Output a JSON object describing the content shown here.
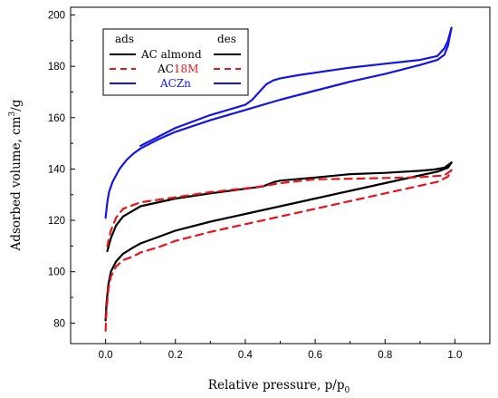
{
  "chart_data": {
    "type": "line",
    "xlabel": "Relative pressure, p/p",
    "xlabel_sub": "0",
    "ylabel": "Adsorbed volume, cm",
    "ylabel_sup": "3",
    "ylabel_tail": "/g",
    "xlim": [
      -0.1,
      1.1
    ],
    "ylim": [
      72,
      203
    ],
    "x_ticks": [
      0.0,
      0.2,
      0.4,
      0.6,
      0.8,
      1.0
    ],
    "x_tick_labels": [
      "0.0",
      "0.2",
      "0.4",
      "0.6",
      "0.8",
      "1.0"
    ],
    "y_ticks": [
      80,
      100,
      120,
      140,
      160,
      180,
      200
    ],
    "y_tick_labels": [
      "80",
      "100",
      "120",
      "140",
      "160",
      "180",
      "200"
    ],
    "grid": false,
    "legend": {
      "placement": "top-left",
      "header_left": "ads",
      "header_right": "des",
      "entries": [
        {
          "label_parts": [
            {
              "text": "AC almond",
              "color": "#000000"
            }
          ],
          "color": "#000000",
          "dashed": false
        },
        {
          "label_parts": [
            {
              "text": "AC",
              "color": "#000000"
            },
            {
              "text": "18M",
              "color": "#e8141b"
            }
          ],
          "color": "#e8141b",
          "dashed": true
        },
        {
          "label_parts": [
            {
              "text": "ACZn",
              "color": "#1414e6"
            }
          ],
          "color": "#1414e6",
          "dashed": false
        }
      ]
    },
    "series": [
      {
        "name": "AC almond",
        "color": "#000000",
        "dashed": false,
        "branches": [
          {
            "branch": "ads",
            "points": [
              [
                0.0,
                81
              ],
              [
                0.003,
                88
              ],
              [
                0.008,
                95
              ],
              [
                0.015,
                100
              ],
              [
                0.03,
                104
              ],
              [
                0.05,
                107
              ],
              [
                0.08,
                109.5
              ],
              [
                0.1,
                111
              ],
              [
                0.15,
                113.5
              ],
              [
                0.2,
                116
              ],
              [
                0.3,
                119.5
              ],
              [
                0.4,
                122.5
              ],
              [
                0.5,
                125.5
              ],
              [
                0.6,
                128.5
              ],
              [
                0.7,
                131.5
              ],
              [
                0.8,
                134.5
              ],
              [
                0.9,
                137.5
              ],
              [
                0.95,
                139
              ],
              [
                0.98,
                140.5
              ],
              [
                0.99,
                142.5
              ]
            ]
          },
          {
            "branch": "des",
            "points": [
              [
                0.99,
                142.5
              ],
              [
                0.97,
                140.5
              ],
              [
                0.94,
                139.8
              ],
              [
                0.9,
                139.3
              ],
              [
                0.8,
                138.5
              ],
              [
                0.7,
                138
              ],
              [
                0.6,
                136.7
              ],
              [
                0.5,
                135.5
              ],
              [
                0.48,
                134.8
              ],
              [
                0.45,
                133.2
              ],
              [
                0.4,
                132.3
              ],
              [
                0.3,
                130.5
              ],
              [
                0.2,
                128.5
              ],
              [
                0.1,
                125.5
              ],
              [
                0.05,
                121.5
              ],
              [
                0.03,
                118
              ],
              [
                0.015,
                113
              ],
              [
                0.005,
                108
              ]
            ]
          }
        ]
      },
      {
        "name": "AC18M",
        "color": "#e8141b",
        "dashed": true,
        "branches": [
          {
            "branch": "ads",
            "points": [
              [
                0.0,
                77
              ],
              [
                0.003,
                85
              ],
              [
                0.008,
                93
              ],
              [
                0.015,
                98
              ],
              [
                0.03,
                102
              ],
              [
                0.05,
                104.5
              ],
              [
                0.08,
                106
              ],
              [
                0.1,
                107.5
              ],
              [
                0.15,
                109.5
              ],
              [
                0.2,
                112
              ],
              [
                0.3,
                115.5
              ],
              [
                0.4,
                118.5
              ],
              [
                0.5,
                121.5
              ],
              [
                0.6,
                124.5
              ],
              [
                0.7,
                127.5
              ],
              [
                0.8,
                130.5
              ],
              [
                0.9,
                133.5
              ],
              [
                0.95,
                135
              ],
              [
                0.98,
                137
              ],
              [
                0.99,
                139.5
              ]
            ]
          },
          {
            "branch": "des",
            "points": [
              [
                0.99,
                139.5
              ],
              [
                0.97,
                137.5
              ],
              [
                0.94,
                137.2
              ],
              [
                0.9,
                136.8
              ],
              [
                0.8,
                136.5
              ],
              [
                0.7,
                136.2
              ],
              [
                0.6,
                136
              ],
              [
                0.5,
                134.5
              ],
              [
                0.48,
                134
              ],
              [
                0.45,
                133.3
              ],
              [
                0.4,
                132.5
              ],
              [
                0.3,
                131
              ],
              [
                0.2,
                129
              ],
              [
                0.1,
                127
              ],
              [
                0.05,
                124.5
              ],
              [
                0.03,
                121
              ],
              [
                0.015,
                116
              ],
              [
                0.005,
                110
              ]
            ]
          }
        ]
      },
      {
        "name": "ACZn",
        "color": "#1414e6",
        "dashed": false,
        "branches": [
          {
            "branch": "ads",
            "points": [
              [
                0.0,
                121
              ],
              [
                0.005,
                127
              ],
              [
                0.01,
                131
              ],
              [
                0.02,
                135
              ],
              [
                0.04,
                140
              ],
              [
                0.06,
                143.5
              ],
              [
                0.08,
                146
              ],
              [
                0.1,
                148
              ],
              [
                0.15,
                151.5
              ],
              [
                0.2,
                154.5
              ],
              [
                0.3,
                159
              ],
              [
                0.4,
                163
              ],
              [
                0.5,
                167
              ],
              [
                0.6,
                170.5
              ],
              [
                0.7,
                174
              ],
              [
                0.8,
                177
              ],
              [
                0.9,
                180.5
              ],
              [
                0.95,
                182.5
              ],
              [
                0.97,
                184.5
              ],
              [
                0.98,
                188
              ],
              [
                0.99,
                195
              ]
            ]
          },
          {
            "branch": "des",
            "points": [
              [
                0.99,
                195
              ],
              [
                0.98,
                190
              ],
              [
                0.97,
                187
              ],
              [
                0.95,
                184
              ],
              [
                0.9,
                182.5
              ],
              [
                0.8,
                181
              ],
              [
                0.7,
                179.5
              ],
              [
                0.6,
                177.5
              ],
              [
                0.55,
                176.5
              ],
              [
                0.5,
                175.3
              ],
              [
                0.48,
                174.5
              ],
              [
                0.46,
                173
              ],
              [
                0.44,
                170
              ],
              [
                0.42,
                167
              ],
              [
                0.4,
                165
              ],
              [
                0.3,
                161
              ],
              [
                0.2,
                156
              ],
              [
                0.1,
                149
              ]
            ]
          }
        ]
      }
    ]
  }
}
